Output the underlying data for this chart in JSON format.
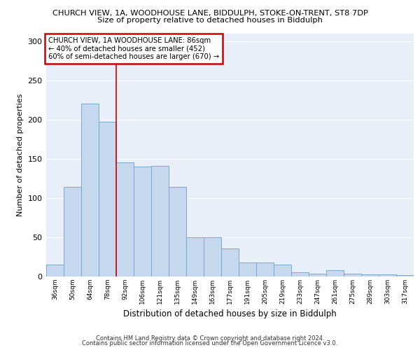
{
  "title_line1": "CHURCH VIEW, 1A, WOODHOUSE LANE, BIDDULPH, STOKE-ON-TRENT, ST8 7DP",
  "title_line2": "Size of property relative to detached houses in Biddulph",
  "xlabel": "Distribution of detached houses by size in Biddulph",
  "ylabel": "Number of detached properties",
  "categories": [
    "36sqm",
    "50sqm",
    "64sqm",
    "78sqm",
    "92sqm",
    "106sqm",
    "121sqm",
    "135sqm",
    "149sqm",
    "163sqm",
    "177sqm",
    "191sqm",
    "205sqm",
    "219sqm",
    "233sqm",
    "247sqm",
    "261sqm",
    "275sqm",
    "289sqm",
    "303sqm",
    "317sqm"
  ],
  "values": [
    15,
    114,
    220,
    197,
    145,
    140,
    141,
    114,
    50,
    50,
    36,
    18,
    18,
    15,
    5,
    4,
    8,
    4,
    3,
    3,
    2
  ],
  "bar_color": "#c5d8ee",
  "bar_edge_color": "#7aaad0",
  "annotation_text": "CHURCH VIEW, 1A WOODHOUSE LANE: 86sqm\n← 40% of detached houses are smaller (452)\n60% of semi-detached houses are larger (670) →",
  "annotation_box_color": "#ffffff",
  "annotation_box_edge_color": "#cc0000",
  "vline_x": 3.5,
  "vline_color": "#cc0000",
  "ylim": [
    0,
    310
  ],
  "yticks": [
    0,
    50,
    100,
    150,
    200,
    250,
    300
  ],
  "background_color": "#e8eff8",
  "grid_color": "#ffffff",
  "footer_line1": "Contains HM Land Registry data © Crown copyright and database right 2024.",
  "footer_line2": "Contains public sector information licensed under the Open Government Licence v3.0."
}
